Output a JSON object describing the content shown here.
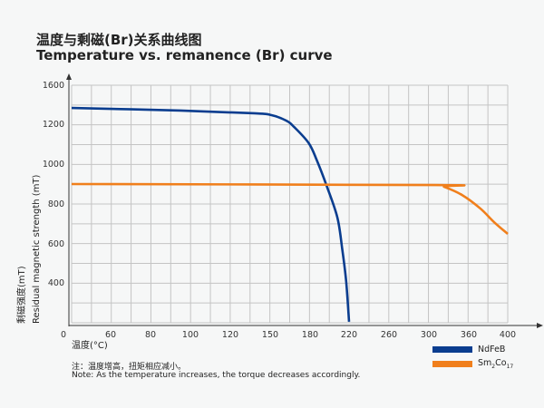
{
  "title_cn": "温度与剩磁(Br)关系曲线图",
  "title_en": "Temperature vs. remanence (Br) curve",
  "note_cn": "注：温度增高，扭矩相应减小。",
  "note_en": "Note: As the temperature increases, the torque decreases accordingly.",
  "chart_data": {
    "type": "line",
    "title": "Temperature vs. remanence (Br) curve",
    "xlabel": "温度(°C)",
    "ylabel_cn": "剩磁强度(mT)",
    "ylabel_en": "Residual magnetic strength (mT)",
    "x_ticks": [
      0,
      60,
      80,
      100,
      120,
      150,
      180,
      220,
      260,
      300,
      360,
      400
    ],
    "y_ticks": [
      1600,
      1200,
      1000,
      800,
      600,
      400
    ],
    "xlim": [
      0,
      400
    ],
    "ylim": [
      200,
      1600
    ],
    "grid": true,
    "legend_position": "bottom-right",
    "series": [
      {
        "name": "NdFeB",
        "color": "#0a3d8f",
        "x": [
          0,
          95,
          138,
          151,
          162,
          168,
          179,
          187,
          197,
          208,
          213,
          217,
          220
        ],
        "y": [
          1367,
          1340,
          1312,
          1293,
          1237,
          1186,
          1105,
          1018,
          891,
          732,
          573,
          409,
          205
        ]
      },
      {
        "name": "Sm2Co17",
        "name_main": "Sm",
        "sub1": "2",
        "name_mid": "Co",
        "sub2": "17",
        "color": "#f07f1c",
        "x": [
          0,
          310,
          323,
          350,
          372,
          386,
          400
        ],
        "y": [
          900,
          895,
          886,
          845,
          777,
          709,
          650
        ]
      }
    ]
  }
}
